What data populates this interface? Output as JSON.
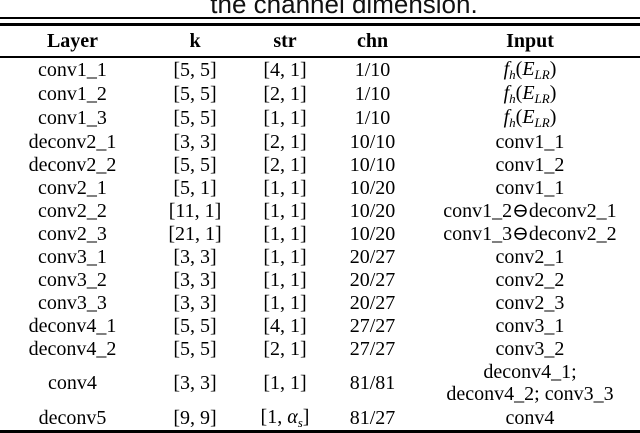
{
  "caption": {
    "text": "the channel dimension."
  },
  "colors": {
    "text": "#000000",
    "background": "#ffffff",
    "rule": "#000000"
  },
  "table": {
    "headers": {
      "layer": "Layer",
      "k": "k",
      "str": "str",
      "chn": "chn",
      "input": "Input"
    },
    "rows": [
      {
        "layer": "conv1_1",
        "k": "[5, 5]",
        "str": "[4, 1]",
        "chn": "1/10",
        "input": {
          "tokens": [
            {
              "s": "i",
              "t": "f"
            },
            {
              "s": "sub",
              "t": "h"
            },
            {
              "s": "n",
              "t": "("
            },
            {
              "s": "i",
              "t": "E"
            },
            {
              "s": "sub",
              "t": "LR"
            },
            {
              "s": "n",
              "t": ")"
            }
          ]
        }
      },
      {
        "layer": "conv1_2",
        "k": "[5, 5]",
        "str": "[2, 1]",
        "chn": "1/10",
        "input": {
          "tokens": [
            {
              "s": "i",
              "t": "f"
            },
            {
              "s": "sub",
              "t": "h"
            },
            {
              "s": "n",
              "t": "("
            },
            {
              "s": "i",
              "t": "E"
            },
            {
              "s": "sub",
              "t": "LR"
            },
            {
              "s": "n",
              "t": ")"
            }
          ]
        }
      },
      {
        "layer": "conv1_3",
        "k": "[5, 5]",
        "str": "[1, 1]",
        "chn": "1/10",
        "input": {
          "tokens": [
            {
              "s": "i",
              "t": "f"
            },
            {
              "s": "sub",
              "t": "h"
            },
            {
              "s": "n",
              "t": "("
            },
            {
              "s": "i",
              "t": "E"
            },
            {
              "s": "sub",
              "t": "LR"
            },
            {
              "s": "n",
              "t": ")"
            }
          ]
        }
      },
      {
        "layer": "deconv2_1",
        "k": "[3, 3]",
        "str": "[2, 1]",
        "chn": "10/10",
        "input": "conv1_1"
      },
      {
        "layer": "deconv2_2",
        "k": "[5, 5]",
        "str": "[2, 1]",
        "chn": "10/10",
        "input": "conv1_2"
      },
      {
        "layer": "conv2_1",
        "k": "[5, 1]",
        "str": "[1, 1]",
        "chn": "10/20",
        "input": "conv1_1"
      },
      {
        "layer": "conv2_2",
        "k": "[11, 1]",
        "str": "[1, 1]",
        "chn": "10/20",
        "input": "conv1_2⊖deconv2_1"
      },
      {
        "layer": "conv2_3",
        "k": "[21, 1]",
        "str": "[1, 1]",
        "chn": "10/20",
        "input": "conv1_3⊖deconv2_2"
      },
      {
        "layer": "conv3_1",
        "k": "[3, 3]",
        "str": "[1, 1]",
        "chn": "20/27",
        "input": "conv2_1"
      },
      {
        "layer": "conv3_2",
        "k": "[3, 3]",
        "str": "[1, 1]",
        "chn": "20/27",
        "input": "conv2_2"
      },
      {
        "layer": "conv3_3",
        "k": "[3, 3]",
        "str": "[1, 1]",
        "chn": "20/27",
        "input": "conv2_3"
      },
      {
        "layer": "deconv4_1",
        "k": "[5, 5]",
        "str": "[4, 1]",
        "chn": "27/27",
        "input": "conv3_1"
      },
      {
        "layer": "deconv4_2",
        "k": "[5, 5]",
        "str": "[2, 1]",
        "chn": "27/27",
        "input": "conv3_2"
      },
      {
        "layer": "conv4",
        "k": "[3, 3]",
        "str": "[1, 1]",
        "chn": "81/81",
        "input": {
          "lines": [
            "deconv4_1;",
            "deconv4_2; conv3_3"
          ]
        }
      },
      {
        "layer": "deconv5",
        "k": "[9, 9]",
        "str": {
          "tokens": [
            {
              "s": "n",
              "t": "[1, "
            },
            {
              "s": "i",
              "t": "α"
            },
            {
              "s": "sub",
              "t": "s"
            },
            {
              "s": "n",
              "t": "]"
            }
          ]
        },
        "chn": "81/27",
        "input": "conv4"
      }
    ]
  }
}
